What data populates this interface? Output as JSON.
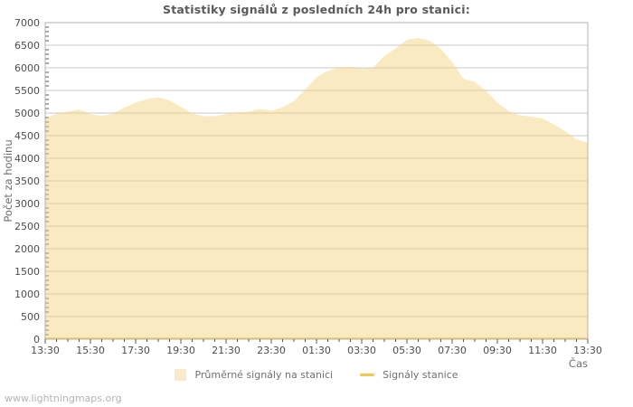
{
  "title": "Statistiky signálů z posledních 24h pro stanici:",
  "watermark": "www.lightningmaps.org",
  "colors": {
    "area_fill": "#f4d078",
    "area_fill_opacity": 0.45,
    "area_swatch": "#faeacd",
    "station_line": "#f0c84e",
    "grid": "#c9c9c9",
    "frame": "#b3b3b3",
    "tick_text": "#4d4d4d",
    "axis_label_text": "#6e6e6e",
    "title_text": "#5a5a5a",
    "legend_text": "#707070",
    "watermark_text": "#b3b3b3"
  },
  "legend": {
    "items": [
      {
        "label": "Průměrné signály na stanici",
        "swatch": "area"
      },
      {
        "label": "Signály stanice",
        "swatch": "line"
      }
    ]
  },
  "chart_data": {
    "type": "area",
    "title": "Statistiky signálů z posledních 24h pro stanici:",
    "xlabel": "Čas",
    "ylabel": "Počet za hodinu",
    "ylim": [
      0,
      7000
    ],
    "y_tick_labels": [
      "0",
      "500",
      "1000",
      "1500",
      "2000",
      "2500",
      "3000",
      "3500",
      "4000",
      "4500",
      "5000",
      "5500",
      "6000",
      "6500",
      "7000"
    ],
    "y_major_step": 500,
    "y_minor_step": 100,
    "x_tick_labels": [
      "13:30",
      "15:30",
      "17:30",
      "19:30",
      "21:30",
      "23:30",
      "01:30",
      "03:30",
      "05:30",
      "07:30",
      "09:30",
      "11:30",
      "13:30"
    ],
    "x_interval_minutes": 30,
    "grid": "horizontal-major",
    "legend_position": "bottom",
    "series": [
      {
        "name": "Průměrné signály na stanici",
        "type": "area",
        "values": [
          4880,
          4990,
          5030,
          5080,
          4980,
          4930,
          4990,
          5120,
          5230,
          5310,
          5350,
          5280,
          5140,
          4990,
          4930,
          4930,
          4980,
          5020,
          5030,
          5090,
          5050,
          5130,
          5260,
          5520,
          5790,
          5930,
          6010,
          6020,
          5980,
          6000,
          6260,
          6430,
          6620,
          6660,
          6600,
          6420,
          6130,
          5760,
          5690,
          5490,
          5230,
          5040,
          4950,
          4920,
          4880,
          4750,
          4600,
          4420,
          4340
        ]
      },
      {
        "name": "Signály stanice",
        "type": "line",
        "values_constant": 0
      }
    ]
  }
}
